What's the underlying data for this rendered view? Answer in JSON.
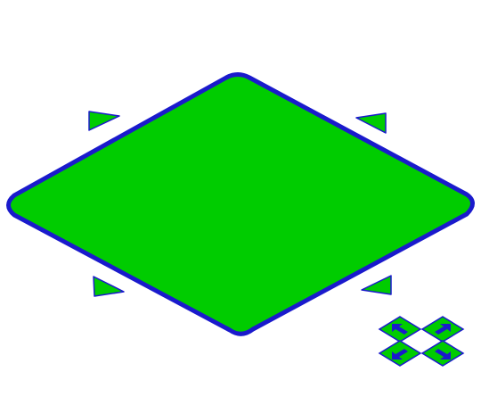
{
  "tile": {
    "fill_color": "#00cc00",
    "outline_color": "#1a1acc"
  },
  "resize_handles": {
    "fill_color": "#00cc00",
    "outline_color": "#1a1acc",
    "corners": [
      "top-left",
      "top-right",
      "bottom-left",
      "bottom-right"
    ]
  },
  "move_widget": {
    "tile_fill": "#00cc00",
    "tile_outline": "#1a1acc",
    "arrow_color": "#1a1acc",
    "directions": [
      "up-left",
      "up-right",
      "down-left",
      "down-right"
    ]
  }
}
